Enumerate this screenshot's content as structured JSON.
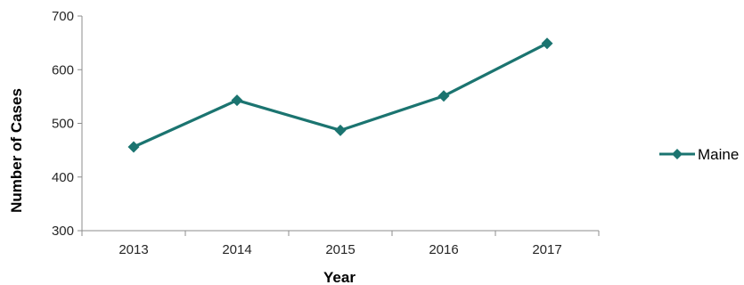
{
  "chart_data": {
    "type": "line",
    "title": "",
    "xlabel": "Year",
    "ylabel": "Number of Cases",
    "categories": [
      "2013",
      "2014",
      "2015",
      "2016",
      "2017"
    ],
    "series": [
      {
        "name": "Maine",
        "values": [
          456,
          543,
          487,
          551,
          649
        ],
        "color": "#1b7470",
        "marker": "diamond"
      }
    ],
    "ylim": [
      300,
      700
    ],
    "yticks": [
      300,
      400,
      500,
      600,
      700
    ],
    "grid": false,
    "legend_position": "right"
  }
}
